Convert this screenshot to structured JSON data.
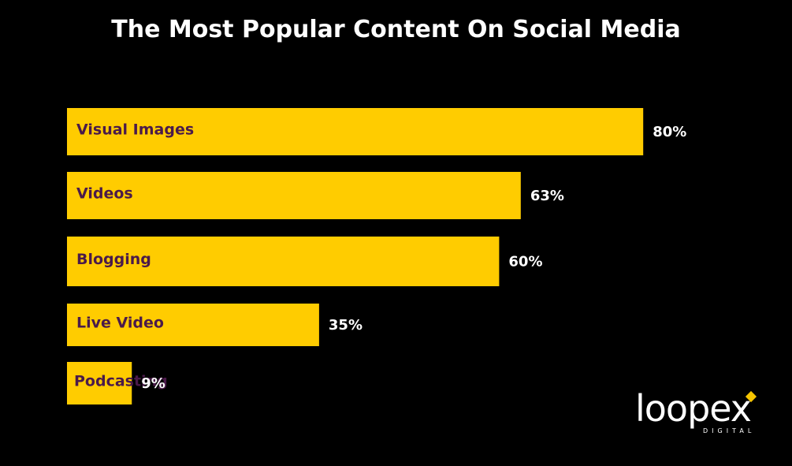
{
  "chart_data": {
    "type": "bar",
    "orientation": "horizontal",
    "title": "The Most Popular Content On Social Media",
    "categories": [
      "Visual Images",
      "Videos",
      "Blogging",
      "Live Video",
      "Podcasting"
    ],
    "values": [
      80,
      63,
      60,
      35,
      9
    ],
    "value_labels": [
      "80%",
      "63%",
      "60%",
      "35%",
      "9%"
    ],
    "unit": "%",
    "grid": false,
    "colors": {
      "bar": "#FFCC00",
      "bar_label": "#4A1A4A",
      "value_label": "#FFFFFF",
      "background": "#000000"
    }
  },
  "logo": {
    "word": "loopex",
    "sub": "DIGITAL"
  }
}
